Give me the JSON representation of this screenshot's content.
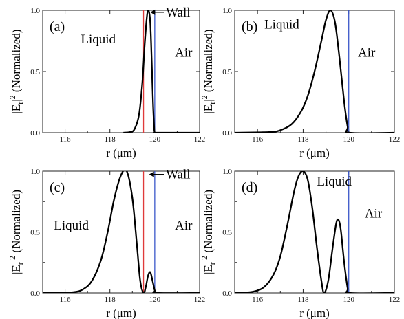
{
  "chart_data": [
    {
      "type": "line",
      "panel_label": "(a)",
      "xlabel": "r (μm)",
      "ylabel_main": "|E",
      "ylabel_sub": "r",
      "ylabel_rest": "|",
      "ylabel_sup": "2",
      "ylabel_tail": " (Normalized)",
      "xlim": [
        115,
        122
      ],
      "ylim": [
        0,
        1
      ],
      "xticks": [
        116,
        118,
        120,
        122
      ],
      "yticks": [
        "0.0",
        "0.5",
        "1.0"
      ],
      "annotations": [
        {
          "text": "Liquid",
          "x": 116.7,
          "y": 0.73
        },
        {
          "text": "Air",
          "x": 120.9,
          "y": 0.62
        },
        {
          "text": "Wall",
          "x": 120.5,
          "y": 0.95,
          "arrow_to_x": 119.8
        }
      ],
      "vlines": [
        {
          "x": 119.5,
          "color": "#e03a3a"
        },
        {
          "x": 120.0,
          "color": "#3a56c8"
        }
      ],
      "series": [
        {
          "color": "#000000",
          "x": [
            118.6,
            118.9,
            119.1,
            119.3,
            119.45,
            119.55,
            119.65,
            119.72,
            119.8,
            119.86,
            119.92,
            119.97,
            120.0,
            120.1,
            122.0
          ],
          "y": [
            0.0,
            0.005,
            0.03,
            0.15,
            0.42,
            0.72,
            0.95,
            1.0,
            0.9,
            0.6,
            0.25,
            0.05,
            0.0,
            0.0,
            0.0
          ]
        }
      ]
    },
    {
      "type": "line",
      "panel_label": "(b)",
      "xlabel": "r (μm)",
      "ylabel_main": "|E",
      "ylabel_sub": "r",
      "ylabel_rest": "|",
      "ylabel_sup": "2",
      "ylabel_tail": " (Normalized)",
      "xlim": [
        115,
        122
      ],
      "ylim": [
        0,
        1
      ],
      "xticks": [
        116,
        118,
        120,
        122
      ],
      "yticks": [
        "0.0",
        "0.5",
        "1.0"
      ],
      "annotations": [
        {
          "text": "Liquid",
          "x": 116.3,
          "y": 0.85
        },
        {
          "text": "Air",
          "x": 120.4,
          "y": 0.62
        }
      ],
      "vlines": [
        {
          "x": 120.0,
          "color": "#3a56c8"
        }
      ],
      "series": [
        {
          "color": "#000000",
          "x": [
            115.0,
            116.5,
            117.0,
            117.5,
            117.9,
            118.2,
            118.5,
            118.8,
            119.0,
            119.2,
            119.4,
            119.6,
            119.8,
            119.95,
            120.05,
            122.0
          ],
          "y": [
            0.0,
            0.005,
            0.02,
            0.07,
            0.17,
            0.3,
            0.5,
            0.75,
            0.92,
            1.0,
            0.9,
            0.6,
            0.25,
            0.05,
            0.0,
            0.0
          ]
        }
      ]
    },
    {
      "type": "line",
      "panel_label": "(c)",
      "xlabel": "r (μm)",
      "ylabel_main": "|E",
      "ylabel_sub": "r",
      "ylabel_rest": "|",
      "ylabel_sup": "2",
      "ylabel_tail": " (Normalized)",
      "xlim": [
        115,
        122
      ],
      "ylim": [
        0,
        1
      ],
      "xticks": [
        116,
        118,
        120,
        122
      ],
      "yticks": [
        "0.0",
        "0.5",
        "1.0"
      ],
      "annotations": [
        {
          "text": "Liquid",
          "x": 115.5,
          "y": 0.52
        },
        {
          "text": "Air",
          "x": 120.9,
          "y": 0.52
        },
        {
          "text": "Wall",
          "x": 120.5,
          "y": 0.94,
          "arrow_to_x": 119.75
        }
      ],
      "vlines": [
        {
          "x": 119.5,
          "color": "#e03a3a"
        },
        {
          "x": 120.0,
          "color": "#3a56c8"
        }
      ],
      "series": [
        {
          "color": "#000000",
          "x": [
            115.0,
            116.3,
            116.8,
            117.2,
            117.6,
            117.9,
            118.2,
            118.5,
            118.75,
            119.0,
            119.2,
            119.35,
            119.5,
            119.6,
            119.7,
            119.8,
            119.9,
            120.0,
            120.1,
            122.0
          ],
          "y": [
            0.0,
            0.005,
            0.03,
            0.1,
            0.27,
            0.5,
            0.78,
            0.97,
            1.0,
            0.78,
            0.4,
            0.1,
            0.0,
            0.05,
            0.14,
            0.17,
            0.1,
            0.02,
            0.0,
            0.0
          ]
        }
      ]
    },
    {
      "type": "line",
      "panel_label": "(d)",
      "xlabel": "r (μm)",
      "ylabel_main": "|E",
      "ylabel_sub": "r",
      "ylabel_rest": "|",
      "ylabel_sup": "2",
      "ylabel_tail": " (Normalized)",
      "xlim": [
        115,
        122
      ],
      "ylim": [
        0,
        1
      ],
      "xticks": [
        116,
        118,
        120,
        122
      ],
      "yticks": [
        "0.0",
        "0.5",
        "1.0"
      ],
      "annotations": [
        {
          "text": "Liquid",
          "x": 118.6,
          "y": 0.88
        },
        {
          "text": "Air",
          "x": 120.7,
          "y": 0.62
        }
      ],
      "vlines": [
        {
          "x": 120.0,
          "color": "#3a56c8"
        }
      ],
      "series": [
        {
          "color": "#000000",
          "x": [
            115.0,
            115.8,
            116.3,
            116.7,
            117.0,
            117.3,
            117.6,
            117.8,
            118.0,
            118.2,
            118.4,
            118.6,
            118.8,
            118.92,
            119.1,
            119.3,
            119.45,
            119.55,
            119.65,
            119.8,
            119.95,
            120.05,
            122.0
          ],
          "y": [
            0.0,
            0.01,
            0.05,
            0.15,
            0.3,
            0.55,
            0.83,
            0.96,
            1.0,
            0.93,
            0.7,
            0.38,
            0.1,
            0.0,
            0.1,
            0.38,
            0.57,
            0.6,
            0.52,
            0.25,
            0.04,
            0.0,
            0.0
          ]
        }
      ]
    }
  ]
}
